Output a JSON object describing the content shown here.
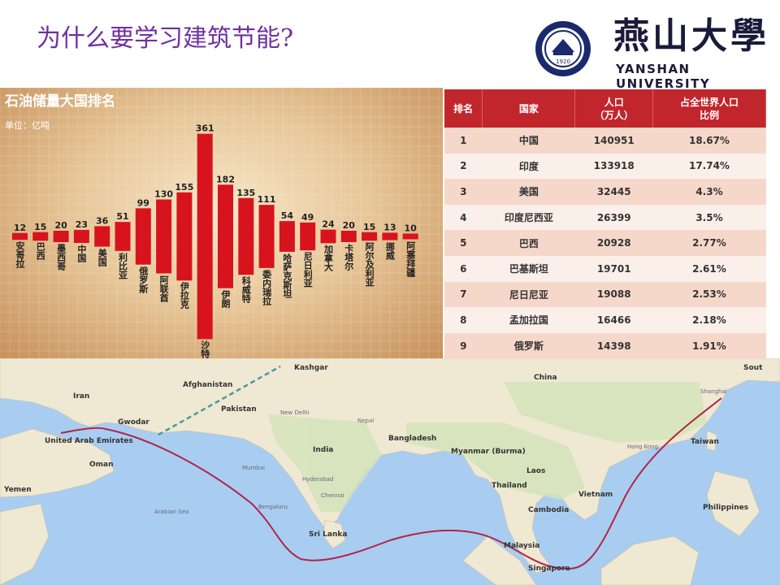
{
  "slide": {
    "title": "为什么要学习建筑节能?"
  },
  "logo": {
    "name_cn": "燕山大學",
    "name_en": "YANSHAN UNIVERSITY",
    "year": "1920",
    "colors": {
      "primary": "#1a2a6c"
    }
  },
  "chart_data": {
    "type": "bar",
    "title": "石油储量大国排名",
    "subtitle": "单位：亿吨",
    "categories": [
      "安哥拉",
      "巴西",
      "墨西哥",
      "中国",
      "美国",
      "利比亚",
      "俄罗斯",
      "阿联酋",
      "伊拉克",
      "沙特",
      "伊朗",
      "科威特",
      "委内瑞拉",
      "哈萨克斯坦",
      "尼日利亚",
      "加拿大",
      "卡塔尔",
      "阿尔及利亚",
      "挪威",
      "阿塞拜疆"
    ],
    "values": [
      12,
      15,
      20,
      23,
      36,
      51,
      99,
      130,
      155,
      361,
      182,
      135,
      111,
      54,
      49,
      24,
      20,
      15,
      13,
      10
    ],
    "bar_color": "#d7141d"
  },
  "population_table": {
    "headers": [
      "排名",
      "国家",
      "人口\n（万人）",
      "占全世界人口\n比例"
    ],
    "header_lines": [
      [
        "排名"
      ],
      [
        "国家"
      ],
      [
        "人口",
        "（万人）"
      ],
      [
        "占全世界人口",
        "比例"
      ]
    ],
    "rows": [
      [
        "1",
        "中国",
        "140951",
        "18.67%"
      ],
      [
        "2",
        "印度",
        "133918",
        "17.74%"
      ],
      [
        "3",
        "美国",
        "32445",
        "4.3%"
      ],
      [
        "4",
        "印度尼西亚",
        "26399",
        "3.5%"
      ],
      [
        "5",
        "巴西",
        "20928",
        "2.77%"
      ],
      [
        "6",
        "巴基斯坦",
        "19701",
        "2.61%"
      ],
      [
        "7",
        "尼日尼亚",
        "19088",
        "2.53%"
      ],
      [
        "8",
        "孟加拉国",
        "16466",
        "2.18%"
      ],
      [
        "9",
        "俄罗斯",
        "14398",
        "1.91%"
      ]
    ],
    "header_color": "#c0262b"
  },
  "map": {
    "labels": [
      "Kashgar",
      "Afghanistan",
      "Iran",
      "Pakistan",
      "Gwodar",
      "United Arab Emirates",
      "Oman",
      "Yemen",
      "New Delhi",
      "Nepal",
      "India",
      "Mumbai",
      "Hyderabad",
      "Chennai",
      "Bengaluru",
      "Sri Lanka",
      "Arabian Sea",
      "China",
      "Bangladesh",
      "Myanmar (Burma)",
      "Laos",
      "Thailand",
      "Vietnam",
      "Cambodia",
      "Malaysia",
      "Singapore",
      "Hong Kong",
      "Taiwan",
      "Shanghai",
      "Philippines",
      "Sout"
    ],
    "route_color": "#b0244a"
  }
}
